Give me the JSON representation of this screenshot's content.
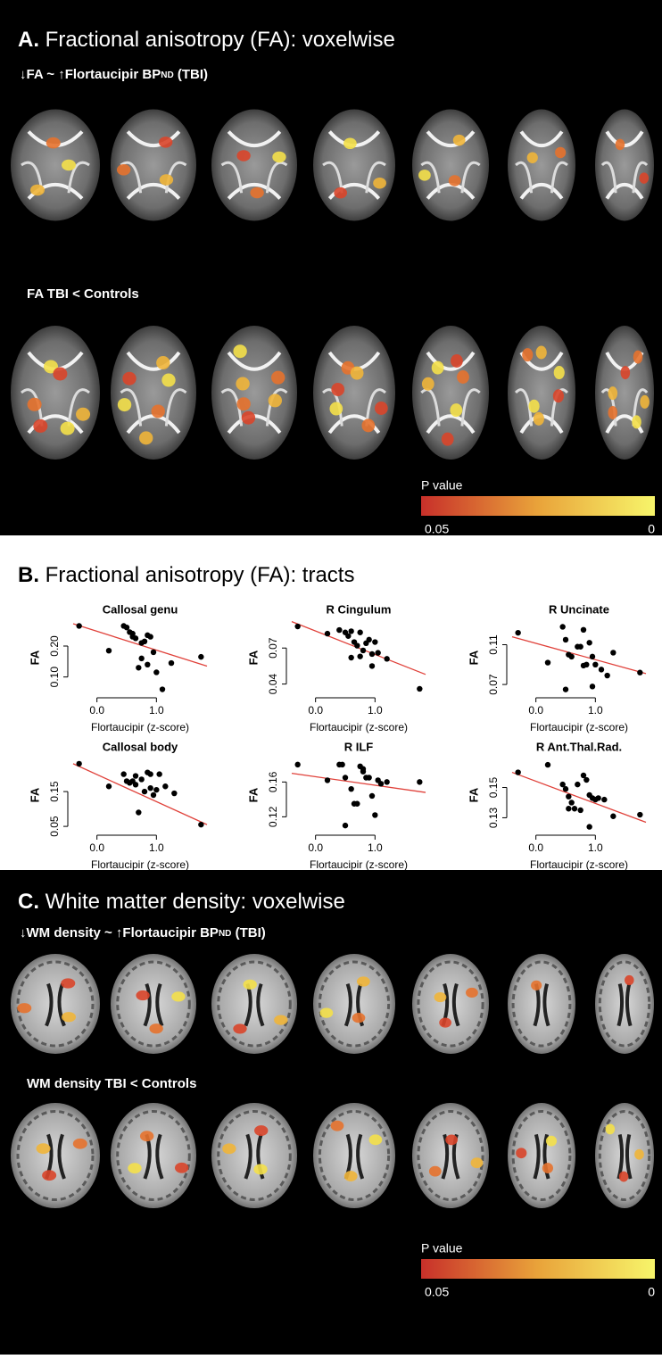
{
  "panel_a": {
    "label": "A.",
    "title": "Fractional anisotropy (FA): voxelwise",
    "subtitle": {
      "prefix": "↓FA ~ ↑Flortaucipir BP",
      "subscript": "ND",
      "suffix": " (TBI)"
    },
    "row2_label": "FA TBI < Controls",
    "colorbar": {
      "title": "P value",
      "min_label": "0.05",
      "max_label": "0"
    }
  },
  "panel_b": {
    "label": "B.",
    "title": "Fractional anisotropy (FA): tracts"
  },
  "chart_data": [
    {
      "type": "scatter",
      "title": "Callosal genu",
      "x_label": "Flortaucipir (z-score)",
      "y_label": "FA",
      "color": "#000000",
      "fit_color": "#e0413a",
      "x": [
        -0.3,
        0.2,
        0.45,
        0.5,
        0.55,
        0.6,
        0.65,
        0.6,
        0.75,
        0.8,
        0.85,
        0.9,
        0.7,
        0.75,
        0.85,
        0.95,
        1.0,
        1.1,
        1.25,
        1.75
      ],
      "values": [
        0.265,
        0.185,
        0.265,
        0.26,
        0.245,
        0.24,
        0.225,
        0.23,
        0.21,
        0.215,
        0.235,
        0.23,
        0.13,
        0.16,
        0.14,
        0.18,
        0.115,
        0.06,
        0.145,
        0.165
      ],
      "fit": {
        "x": [
          -0.4,
          1.85
        ],
        "y": [
          0.272,
          0.135
        ]
      },
      "xlim": [
        -0.4,
        1.85
      ],
      "ylim": [
        0.05,
        0.275
      ],
      "xticks": [
        {
          "value": 0,
          "label": "0.0"
        },
        {
          "value": 1,
          "label": "1.0"
        }
      ],
      "yticks": [
        {
          "value": 0.1,
          "label": "0.10"
        },
        {
          "value": 0.2,
          "label": "0.20"
        }
      ]
    },
    {
      "type": "scatter",
      "title": "R Cingulum",
      "x_label": "Flortaucipir (z-score)",
      "y_label": "FA",
      "color": "#000000",
      "fit_color": "#e0413a",
      "x": [
        -0.3,
        0.2,
        0.4,
        0.5,
        0.55,
        0.6,
        0.65,
        0.7,
        0.75,
        0.8,
        0.85,
        0.9,
        0.95,
        1.0,
        0.6,
        0.75,
        1.05,
        1.2,
        0.95,
        1.75
      ],
      "values": [
        0.088,
        0.082,
        0.085,
        0.083,
        0.08,
        0.084,
        0.075,
        0.072,
        0.083,
        0.068,
        0.074,
        0.077,
        0.065,
        0.075,
        0.062,
        0.063,
        0.066,
        0.061,
        0.055,
        0.036
      ],
      "fit": {
        "x": [
          -0.4,
          1.85
        ],
        "y": [
          0.092,
          0.048
        ]
      },
      "xlim": [
        -0.4,
        1.85
      ],
      "ylim": [
        0.033,
        0.091
      ],
      "xticks": [
        {
          "value": 0,
          "label": "0.0"
        },
        {
          "value": 1,
          "label": "1.0"
        }
      ],
      "yticks": [
        0.04,
        0.07
      ]
    },
    {
      "type": "scatter",
      "title": "R Uncinate",
      "x_label": "Flortaucipir (z-score)",
      "y_label": "FA",
      "color": "#000000",
      "fit_color": "#e0413a",
      "x": [
        -0.3,
        0.2,
        0.45,
        0.5,
        0.55,
        0.6,
        0.7,
        0.75,
        0.8,
        0.85,
        0.9,
        0.95,
        1.0,
        0.5,
        0.95,
        1.1,
        1.2,
        1.3,
        1.75,
        0.8
      ],
      "values": [
        0.122,
        0.092,
        0.128,
        0.115,
        0.1,
        0.098,
        0.108,
        0.108,
        0.125,
        0.09,
        0.112,
        0.098,
        0.09,
        0.065,
        0.068,
        0.085,
        0.079,
        0.102,
        0.082,
        0.089
      ],
      "fit": {
        "x": [
          -0.4,
          1.85
        ],
        "y": [
          0.118,
          0.081
        ]
      },
      "xlim": [
        -0.4,
        1.85
      ],
      "ylim": [
        0.062,
        0.132
      ],
      "xticks": [
        {
          "value": 0,
          "label": "0.0"
        },
        {
          "value": 1,
          "label": "1.0"
        }
      ],
      "yticks": [
        0.07,
        0.11
      ]
    },
    {
      "type": "scatter",
      "title": "Callosal body",
      "x_label": "Flortaucipir (z-score)",
      "y_label": "FA",
      "color": "#000000",
      "fit_color": "#e0413a",
      "x": [
        -0.3,
        0.2,
        0.45,
        0.5,
        0.55,
        0.6,
        0.65,
        0.7,
        0.75,
        0.8,
        0.85,
        0.9,
        0.95,
        1.0,
        1.05,
        1.15,
        1.3,
        0.9,
        1.75,
        0.65
      ],
      "values": [
        0.23,
        0.165,
        0.2,
        0.18,
        0.175,
        0.18,
        0.17,
        0.09,
        0.185,
        0.15,
        0.205,
        0.2,
        0.14,
        0.155,
        0.2,
        0.165,
        0.145,
        0.16,
        0.055,
        0.195
      ],
      "fit": {
        "x": [
          -0.4,
          1.85
        ],
        "y": [
          0.23,
          0.055
        ]
      },
      "xlim": [
        -0.4,
        1.85
      ],
      "ylim": [
        0.04,
        0.24
      ],
      "xticks": [
        {
          "value": 0,
          "label": "0.0"
        },
        {
          "value": 1,
          "label": "1.0"
        }
      ],
      "yticks": [
        0.05,
        0.15
      ]
    },
    {
      "type": "scatter",
      "title": "R ILF",
      "x_label": "Flortaucipir (z-score)",
      "y_label": "FA",
      "color": "#000000",
      "fit_color": "#e0413a",
      "x": [
        -0.3,
        0.2,
        0.4,
        0.45,
        0.5,
        0.5,
        0.6,
        0.65,
        0.7,
        0.75,
        0.8,
        0.85,
        0.9,
        0.95,
        1.0,
        1.05,
        1.1,
        1.2,
        1.75,
        0.8
      ],
      "values": [
        0.18,
        0.162,
        0.18,
        0.18,
        0.165,
        0.11,
        0.152,
        0.135,
        0.135,
        0.178,
        0.172,
        0.165,
        0.165,
        0.144,
        0.122,
        0.162,
        0.158,
        0.16,
        0.16,
        0.175
      ],
      "fit": {
        "x": [
          -0.4,
          1.85
        ],
        "y": [
          0.17,
          0.148
        ]
      },
      "xlim": [
        -0.4,
        1.85
      ],
      "ylim": [
        0.105,
        0.185
      ],
      "xticks": [
        {
          "value": 0,
          "label": "0.0"
        },
        {
          "value": 1,
          "label": "1.0"
        }
      ],
      "yticks": [
        0.12,
        0.16
      ]
    },
    {
      "type": "scatter",
      "title": "R Ant.Thal.Rad.",
      "x_label": "Flortaucipir (z-score)",
      "y_label": "FA",
      "color": "#000000",
      "fit_color": "#e0413a",
      "x": [
        -0.3,
        0.2,
        0.45,
        0.5,
        0.55,
        0.6,
        0.65,
        0.7,
        0.75,
        0.8,
        0.85,
        0.9,
        0.95,
        1.0,
        1.05,
        0.9,
        1.15,
        1.3,
        1.75,
        0.55
      ],
      "values": [
        0.16,
        0.165,
        0.152,
        0.149,
        0.144,
        0.14,
        0.136,
        0.152,
        0.135,
        0.158,
        0.155,
        0.145,
        0.143,
        0.142,
        0.143,
        0.124,
        0.142,
        0.131,
        0.132,
        0.136
      ],
      "fit": {
        "x": [
          -0.4,
          1.85
        ],
        "y": [
          0.16,
          0.127
        ]
      },
      "xlim": [
        -0.4,
        1.85
      ],
      "ylim": [
        0.122,
        0.168
      ],
      "xticks": [
        {
          "value": 0,
          "label": "0.0"
        },
        {
          "value": 1,
          "label": "1.0"
        }
      ],
      "yticks": [
        0.13,
        0.15
      ]
    }
  ],
  "panel_c": {
    "label": "C.",
    "title": "White matter density: voxelwise",
    "subtitle": {
      "prefix": "↓WM density ~ ↑Flortaucipir BP",
      "subscript": "ND",
      "suffix": " (TBI)"
    },
    "row2_label": "WM density TBI < Controls",
    "colorbar": {
      "title": "P value",
      "min_label": "0.05",
      "max_label": "0"
    }
  }
}
